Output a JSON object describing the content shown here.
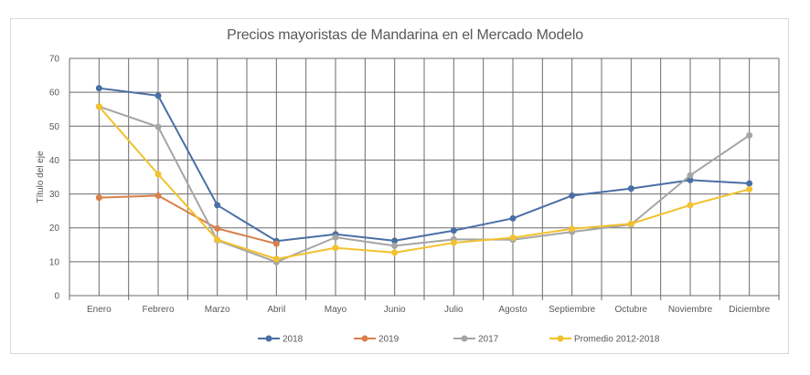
{
  "chart_data": {
    "type": "line",
    "title": "Precios mayoristas de Mandarina en el Mercado Modelo",
    "xlabel": "",
    "ylabel": "Título del eje",
    "ylim": [
      0,
      70
    ],
    "yticks": [
      0,
      10,
      20,
      30,
      40,
      50,
      60,
      70
    ],
    "grid": true,
    "legend_position": "bottom",
    "categories": [
      "Enero",
      "Febrero",
      "Marzo",
      "Abril",
      "Mayo",
      "Junio",
      "Julio",
      "Agosto",
      "Septiembre",
      "Octubre",
      "Noviembre",
      "Diciembre"
    ],
    "series": [
      {
        "name": "2018",
        "color": "#4a6fa5",
        "values": [
          61.2,
          59.0,
          26.7,
          16.1,
          18.1,
          16.2,
          19.2,
          22.8,
          29.5,
          31.6,
          34.1,
          33.1
        ]
      },
      {
        "name": "2019",
        "color": "#d9804a",
        "values": [
          28.9,
          29.5,
          19.8,
          15.3,
          null,
          null,
          null,
          null,
          null,
          null,
          null,
          null
        ]
      },
      {
        "name": "2017",
        "color": "#a5a5a5",
        "values": [
          55.8,
          49.8,
          16.3,
          9.9,
          17.2,
          14.7,
          16.6,
          16.5,
          18.8,
          21.0,
          35.5,
          47.3
        ]
      },
      {
        "name": "Promedio 2012-2018",
        "color": "#f2c12e",
        "values": [
          55.8,
          35.8,
          16.5,
          10.8,
          14.1,
          12.7,
          15.6,
          17.1,
          19.7,
          21.2,
          26.7,
          31.4
        ]
      }
    ]
  }
}
